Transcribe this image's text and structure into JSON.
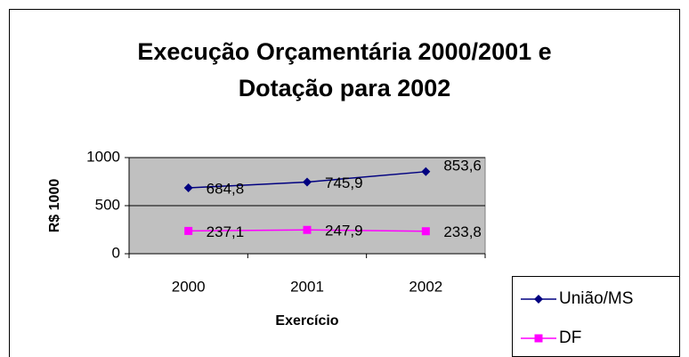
{
  "chart_data": {
    "type": "line",
    "title": [
      "Execução Orçamentária 2000/2001 e",
      "Dotação para 2002"
    ],
    "x_label": "Exercício",
    "y_label": "R$ 1000",
    "categories": [
      "2000",
      "2001",
      "2002"
    ],
    "series": [
      {
        "name": "União/MS",
        "color": "#000080",
        "marker": "diamond",
        "values": [
          684.8,
          745.9,
          853.6
        ],
        "value_labels": [
          "684,8",
          "745,9",
          "853,6"
        ]
      },
      {
        "name": "DF",
        "color": "#ff00ff",
        "marker": "square",
        "values": [
          237.1,
          247.9,
          233.8
        ],
        "value_labels": [
          "237,1",
          "247,9",
          "233,8"
        ]
      }
    ],
    "ylim": [
      0,
      1000
    ],
    "yticks": [
      0,
      500,
      1000
    ],
    "grid": true,
    "legend": "bottom-right",
    "plot_background": "#c0c0c0"
  }
}
